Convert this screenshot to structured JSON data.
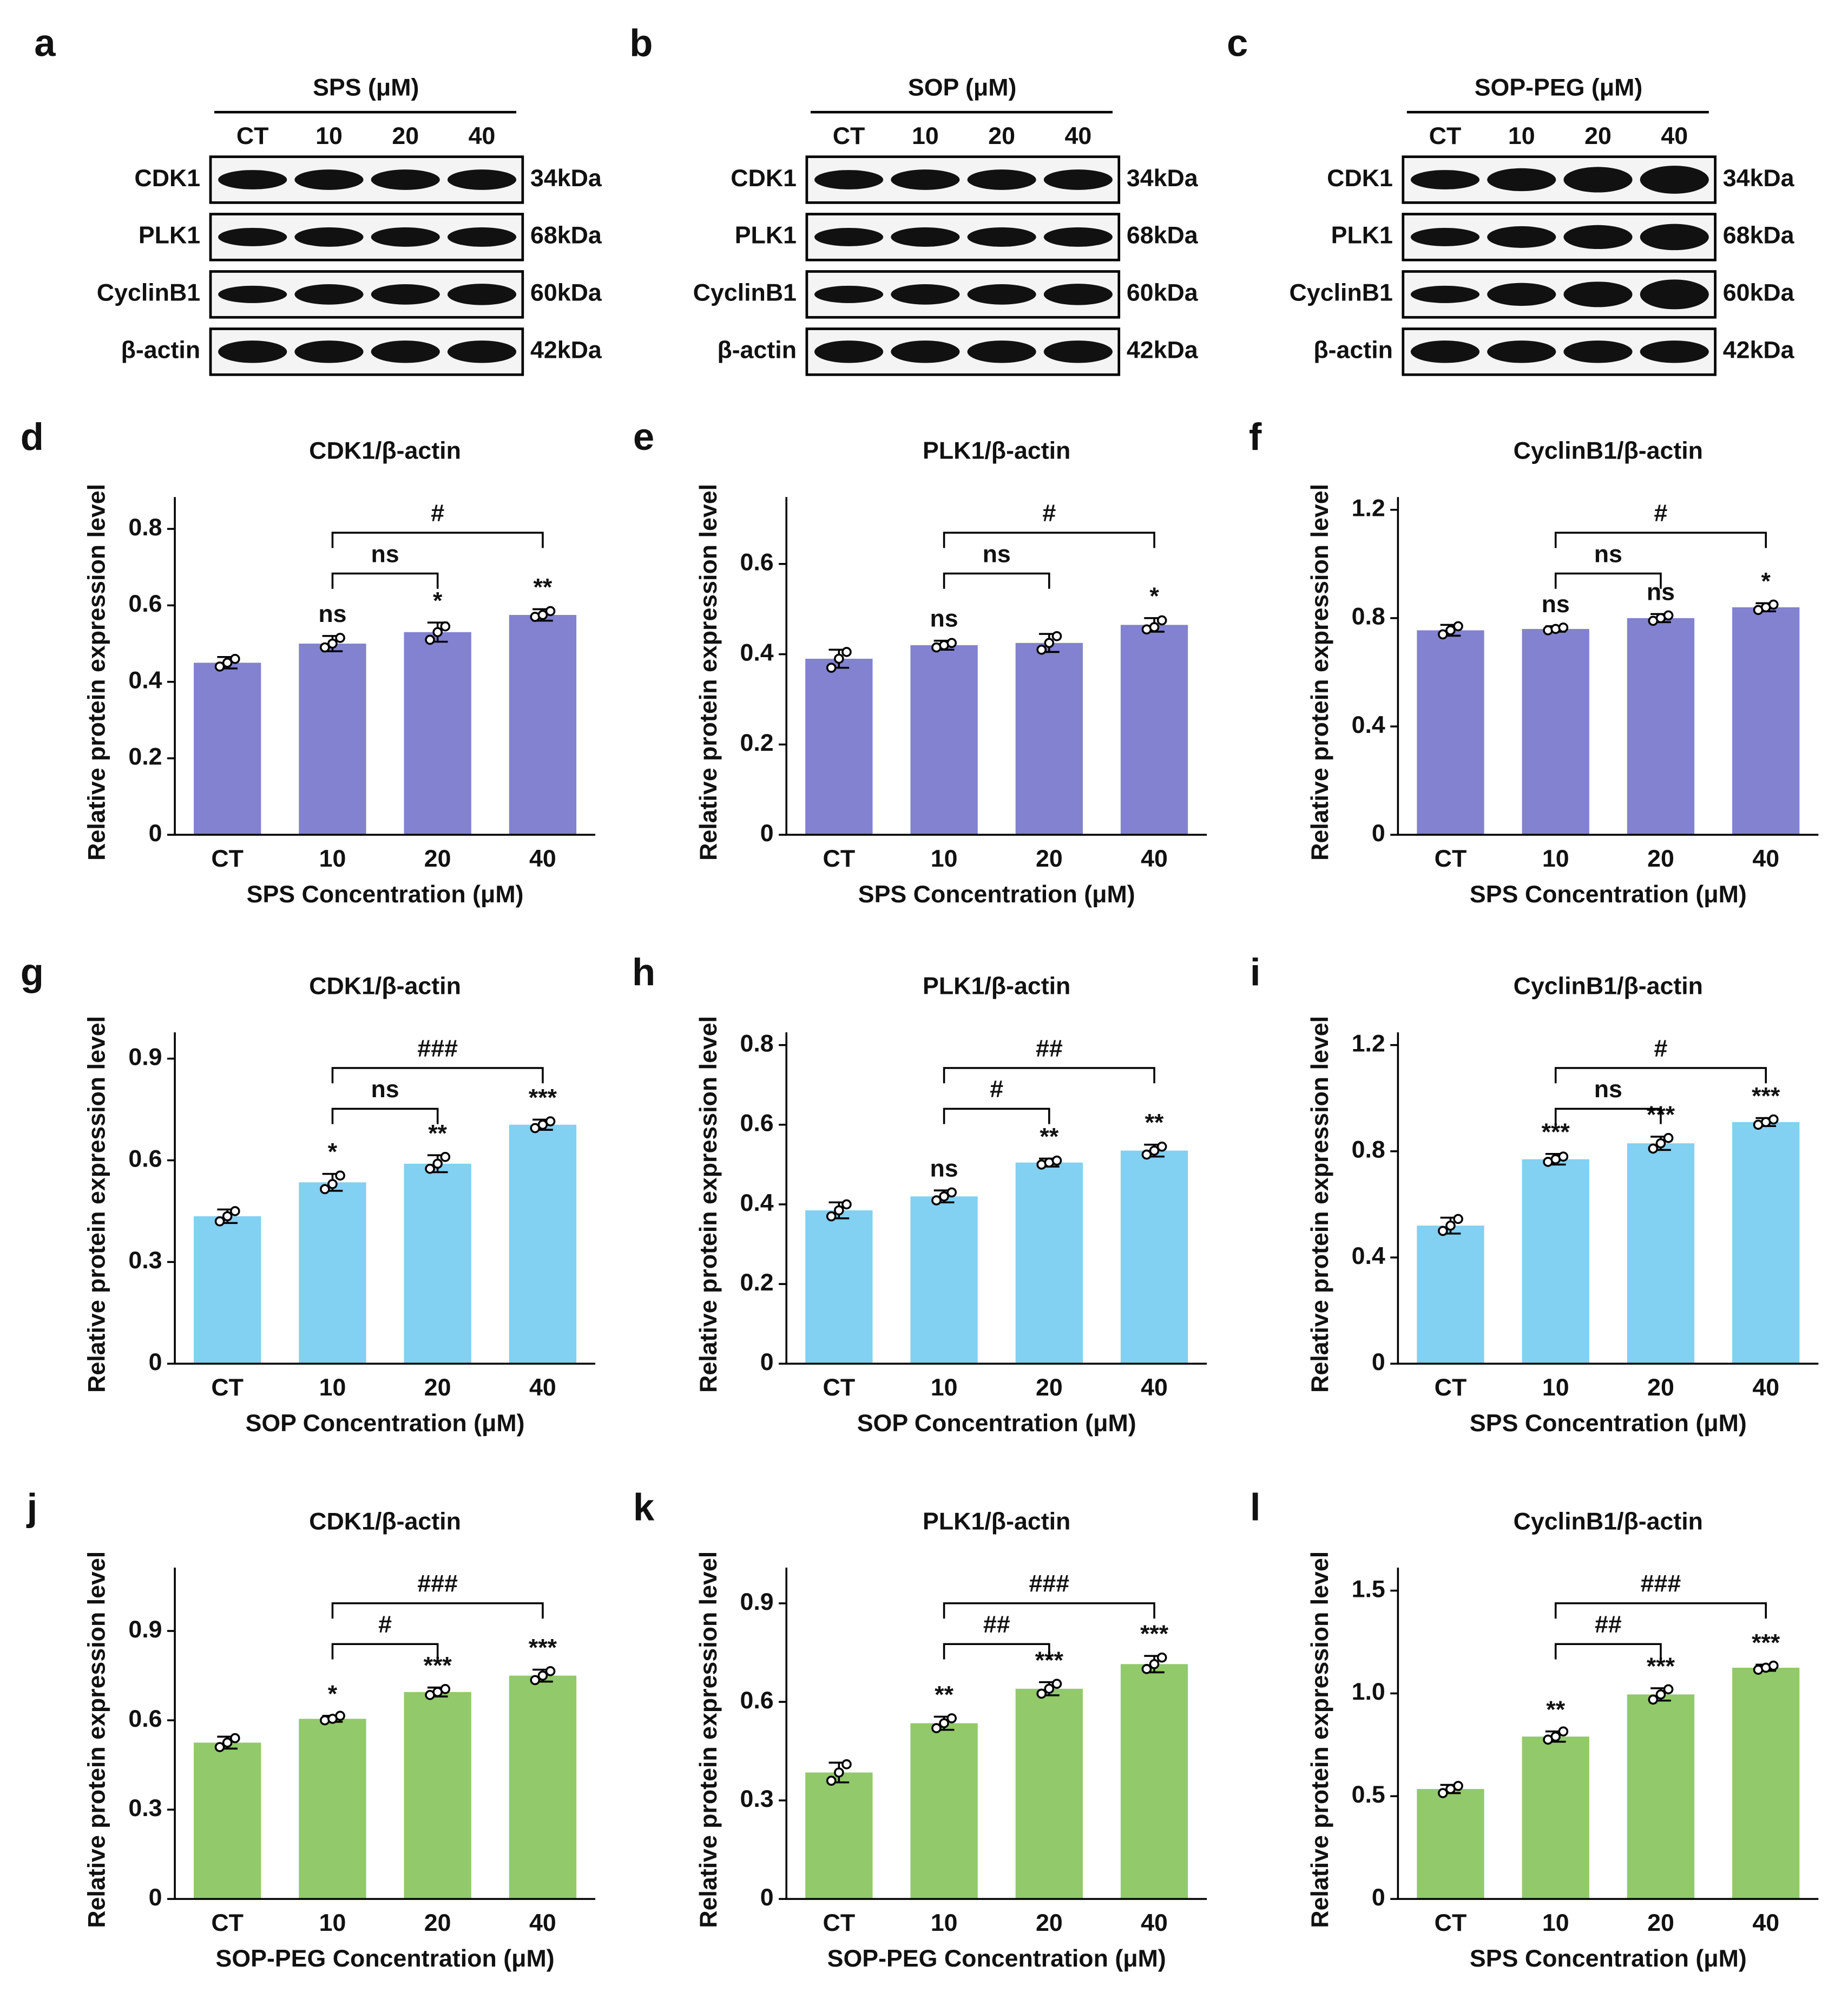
{
  "blots": [
    {
      "panel": "a",
      "title": "SPS (μM)",
      "lanes": [
        "CT",
        "10",
        "20",
        "40"
      ],
      "rows": [
        {
          "protein": "CDK1",
          "size": "34kDa"
        },
        {
          "protein": "PLK1",
          "size": "68kDa"
        },
        {
          "protein": "CyclinB1",
          "size": "60kDa"
        },
        {
          "protein": "β-actin",
          "size": "42kDa"
        }
      ]
    },
    {
      "panel": "b",
      "title": "SOP (μM)",
      "lanes": [
        "CT",
        "10",
        "20",
        "40"
      ],
      "rows": [
        {
          "protein": "CDK1",
          "size": "34kDa"
        },
        {
          "protein": "PLK1",
          "size": "68kDa"
        },
        {
          "protein": "CyclinB1",
          "size": "60kDa"
        },
        {
          "protein": "β-actin",
          "size": "42kDa"
        }
      ]
    },
    {
      "panel": "c",
      "title": "SOP-PEG (μM)",
      "lanes": [
        "CT",
        "10",
        "20",
        "40"
      ],
      "rows": [
        {
          "protein": "CDK1",
          "size": "34kDa"
        },
        {
          "protein": "PLK1",
          "size": "68kDa"
        },
        {
          "protein": "CyclinB1",
          "size": "60kDa"
        },
        {
          "protein": "β-actin",
          "size": "42kDa"
        }
      ]
    }
  ],
  "chart_data": [
    {
      "type": "bar",
      "panel": "d",
      "title": "CDK1/β-actin",
      "x_label": "SPS Concentration (μM)",
      "y_label": "Relative protein expression level",
      "color": "#8282d0",
      "categories": [
        "CT",
        "10",
        "20",
        "40"
      ],
      "values": [
        0.45,
        0.5,
        0.53,
        0.575
      ],
      "errors": [
        0.015,
        0.02,
        0.025,
        0.015
      ],
      "points": [
        [
          0.44,
          0.45,
          0.46
        ],
        [
          0.49,
          0.5,
          0.515
        ],
        [
          0.51,
          0.53,
          0.545
        ],
        [
          0.57,
          0.575,
          0.585
        ]
      ],
      "significance": [
        null,
        "ns",
        "*",
        "**"
      ],
      "brackets": [
        {
          "pair": [
            "10",
            "20"
          ],
          "label": "ns"
        },
        {
          "pair": [
            "10",
            "40"
          ],
          "label": "#"
        }
      ],
      "ylim": [
        0,
        0.85
      ],
      "yticks": [
        0,
        0.2,
        0.4,
        0.6,
        0.8
      ]
    },
    {
      "type": "bar",
      "panel": "e",
      "title": "PLK1/β-actin",
      "x_label": "SPS Concentration (μM)",
      "y_label": "Relative protein expression level",
      "color": "#8282d0",
      "categories": [
        "CT",
        "10",
        "20",
        "40"
      ],
      "values": [
        0.39,
        0.42,
        0.425,
        0.465
      ],
      "errors": [
        0.02,
        0.01,
        0.02,
        0.015
      ],
      "points": [
        [
          0.37,
          0.39,
          0.405
        ],
        [
          0.415,
          0.42,
          0.425
        ],
        [
          0.41,
          0.425,
          0.44
        ],
        [
          0.455,
          0.46,
          0.475
        ]
      ],
      "significance": [
        null,
        "ns",
        null,
        "*"
      ],
      "brackets": [
        {
          "pair": [
            "10",
            "20"
          ],
          "label": "ns"
        },
        {
          "pair": [
            "10",
            "40"
          ],
          "label": "#"
        }
      ],
      "ylim": [
        0,
        0.72
      ],
      "yticks": [
        0,
        0.2,
        0.4,
        0.6
      ]
    },
    {
      "type": "bar",
      "panel": "f",
      "title": "CyclinB1/β-actin",
      "x_label": "SPS Concentration (μM)",
      "y_label": "Relative protein expression level",
      "color": "#8282d0",
      "categories": [
        "CT",
        "10",
        "20",
        "40"
      ],
      "values": [
        0.755,
        0.76,
        0.8,
        0.84
      ],
      "errors": [
        0.02,
        0.01,
        0.015,
        0.015
      ],
      "points": [
        [
          0.74,
          0.755,
          0.77
        ],
        [
          0.755,
          0.76,
          0.765
        ],
        [
          0.79,
          0.8,
          0.81
        ],
        [
          0.83,
          0.84,
          0.85
        ]
      ],
      "significance": [
        null,
        "ns",
        "ns",
        "*"
      ],
      "brackets": [
        {
          "pair": [
            "10",
            "20"
          ],
          "label": "ns"
        },
        {
          "pair": [
            "10",
            "40"
          ],
          "label": "#"
        }
      ],
      "ylim": [
        0,
        1.2
      ],
      "yticks": [
        0,
        0.4,
        0.8,
        1.2
      ]
    },
    {
      "type": "bar",
      "panel": "g",
      "title": "CDK1/β-actin",
      "x_label": "SOP Concentration (μM)",
      "y_label": "Relative protein expression level",
      "color": "#82d0f2",
      "categories": [
        "CT",
        "10",
        "20",
        "40"
      ],
      "values": [
        0.435,
        0.535,
        0.59,
        0.705
      ],
      "errors": [
        0.02,
        0.025,
        0.025,
        0.015
      ],
      "points": [
        [
          0.42,
          0.435,
          0.45
        ],
        [
          0.515,
          0.53,
          0.555
        ],
        [
          0.575,
          0.59,
          0.61
        ],
        [
          0.695,
          0.705,
          0.715
        ]
      ],
      "significance": [
        null,
        "*",
        "**",
        "***"
      ],
      "brackets": [
        {
          "pair": [
            "10",
            "20"
          ],
          "label": "ns"
        },
        {
          "pair": [
            "10",
            "40"
          ],
          "label": "###"
        }
      ],
      "ylim": [
        0,
        0.94
      ],
      "yticks": [
        0,
        0.3,
        0.6,
        0.9
      ]
    },
    {
      "type": "bar",
      "panel": "h",
      "title": "PLK1/β-actin",
      "x_label": "SOP Concentration (μM)",
      "y_label": "Relative protein expression level",
      "color": "#82d0f2",
      "categories": [
        "CT",
        "10",
        "20",
        "40"
      ],
      "values": [
        0.385,
        0.42,
        0.505,
        0.535
      ],
      "errors": [
        0.02,
        0.015,
        0.01,
        0.015
      ],
      "points": [
        [
          0.37,
          0.385,
          0.4
        ],
        [
          0.41,
          0.42,
          0.43
        ],
        [
          0.5,
          0.505,
          0.51
        ],
        [
          0.525,
          0.535,
          0.545
        ]
      ],
      "significance": [
        null,
        "ns",
        "**",
        "**"
      ],
      "brackets": [
        {
          "pair": [
            "10",
            "20"
          ],
          "label": "#"
        },
        {
          "pair": [
            "10",
            "40"
          ],
          "label": "##"
        }
      ],
      "ylim": [
        0,
        0.8
      ],
      "yticks": [
        0,
        0.2,
        0.4,
        0.6,
        0.8
      ]
    },
    {
      "type": "bar",
      "panel": "i",
      "title": "CyclinB1/β-actin",
      "x_label": "SPS Concentration (μM)",
      "y_label": "Relative protein expression level",
      "color": "#82d0f2",
      "categories": [
        "CT",
        "10",
        "20",
        "40"
      ],
      "values": [
        0.52,
        0.77,
        0.83,
        0.91
      ],
      "errors": [
        0.03,
        0.02,
        0.025,
        0.015
      ],
      "points": [
        [
          0.5,
          0.52,
          0.545
        ],
        [
          0.76,
          0.77,
          0.78
        ],
        [
          0.81,
          0.83,
          0.85
        ],
        [
          0.9,
          0.91,
          0.92
        ]
      ],
      "significance": [
        null,
        "***",
        "***",
        "***"
      ],
      "brackets": [
        {
          "pair": [
            "10",
            "20"
          ],
          "label": "ns"
        },
        {
          "pair": [
            "10",
            "40"
          ],
          "label": "#"
        }
      ],
      "ylim": [
        0,
        1.2
      ],
      "yticks": [
        0,
        0.4,
        0.8,
        1.2
      ]
    },
    {
      "type": "bar",
      "panel": "j",
      "title": "CDK1/β-actin",
      "x_label": "SOP-PEG Concentration (μM)",
      "y_label": "Relative protein expression level",
      "color": "#92c96a",
      "categories": [
        "CT",
        "10",
        "20",
        "40"
      ],
      "values": [
        0.525,
        0.605,
        0.695,
        0.75
      ],
      "errors": [
        0.02,
        0.01,
        0.015,
        0.02
      ],
      "points": [
        [
          0.51,
          0.525,
          0.54
        ],
        [
          0.6,
          0.605,
          0.615
        ],
        [
          0.685,
          0.695,
          0.705
        ],
        [
          0.735,
          0.75,
          0.765
        ]
      ],
      "significance": [
        null,
        "*",
        "***",
        "***"
      ],
      "brackets": [
        {
          "pair": [
            "10",
            "20"
          ],
          "label": "#"
        },
        {
          "pair": [
            "10",
            "40"
          ],
          "label": "###"
        }
      ],
      "ylim": [
        0,
        1.07
      ],
      "yticks": [
        0,
        0.3,
        0.6,
        0.9
      ]
    },
    {
      "type": "bar",
      "panel": "k",
      "title": "PLK1/β-actin",
      "x_label": "SOP-PEG Concentration (μM)",
      "y_label": "Relative protein expression level",
      "color": "#92c96a",
      "categories": [
        "CT",
        "10",
        "20",
        "40"
      ],
      "values": [
        0.385,
        0.535,
        0.64,
        0.715
      ],
      "errors": [
        0.03,
        0.02,
        0.02,
        0.025
      ],
      "points": [
        [
          0.36,
          0.385,
          0.41
        ],
        [
          0.52,
          0.535,
          0.55
        ],
        [
          0.625,
          0.64,
          0.655
        ],
        [
          0.7,
          0.715,
          0.735
        ]
      ],
      "significance": [
        null,
        "**",
        "***",
        "***"
      ],
      "brackets": [
        {
          "pair": [
            "10",
            "20"
          ],
          "label": "##"
        },
        {
          "pair": [
            "10",
            "40"
          ],
          "label": "###"
        }
      ],
      "ylim": [
        0,
        0.97
      ],
      "yticks": [
        0,
        0.3,
        0.6,
        0.9
      ]
    },
    {
      "type": "bar",
      "panel": "l",
      "title": "CyclinB1/β-actin",
      "x_label": "SPS Concentration (μM)",
      "y_label": "Relative protein expression level",
      "color": "#92c96a",
      "categories": [
        "CT",
        "10",
        "20",
        "40"
      ],
      "values": [
        0.535,
        0.79,
        0.995,
        1.125
      ],
      "errors": [
        0.02,
        0.025,
        0.03,
        0.015
      ],
      "points": [
        [
          0.515,
          0.535,
          0.55
        ],
        [
          0.775,
          0.79,
          0.815
        ],
        [
          0.97,
          0.995,
          1.02
        ],
        [
          1.115,
          1.125,
          1.135
        ]
      ],
      "significance": [
        null,
        "**",
        "***",
        "***"
      ],
      "brackets": [
        {
          "pair": [
            "10",
            "20"
          ],
          "label": "##"
        },
        {
          "pair": [
            "10",
            "40"
          ],
          "label": "###"
        }
      ],
      "ylim": [
        0,
        1.55
      ],
      "yticks": [
        0,
        0.5,
        {
          "value": 1,
          "label": "1.0"
        },
        1.5
      ]
    }
  ]
}
